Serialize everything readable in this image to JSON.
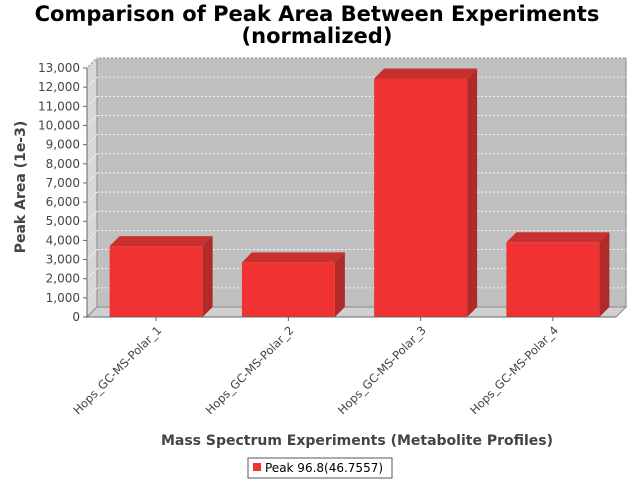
{
  "chart_data": {
    "type": "bar",
    "title_lines": [
      "Comparison of Peak Area Between Experiments",
      "(normalized)"
    ],
    "xlabel": "Mass Spectrum Experiments (Metabolite Profiles)",
    "ylabel": "Peak Area (1e-3)",
    "categories": [
      "Hops_GC-MS-Polar_1",
      "Hops_GC-MS-Polar_2",
      "Hops_GC-MS-Polar_3",
      "Hops_GC-MS-Polar_4"
    ],
    "series": [
      {
        "name": "Peak 96.8(46.7557)",
        "values": [
          3700,
          2850,
          12450,
          3900
        ]
      }
    ],
    "ylim": [
      0,
      13000
    ],
    "yticks": [
      0,
      1000,
      2000,
      3000,
      4000,
      5000,
      6000,
      7000,
      8000,
      9000,
      10000,
      11000,
      12000,
      13000
    ],
    "ytick_labels": [
      "0",
      "1,000",
      "2,000",
      "3,000",
      "4,000",
      "5,000",
      "6,000",
      "7,000",
      "8,000",
      "9,000",
      "10,000",
      "11,000",
      "12,000",
      "13,000"
    ],
    "grid": true,
    "legend_position": "bottom",
    "colors": {
      "bar_front": "#f03232",
      "bar_top": "#c83030",
      "bar_side": "#b02a2a",
      "plot_back": "#c0c0c0",
      "plot_side": "#d8d8d8",
      "floor": "#d0d0d0",
      "grid": "#ffffff"
    }
  }
}
